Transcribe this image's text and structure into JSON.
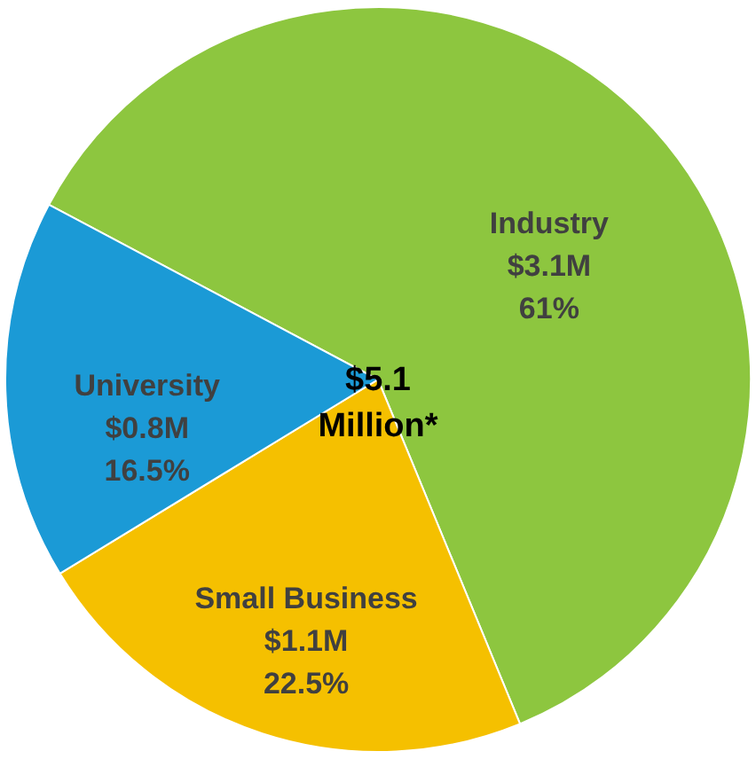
{
  "chart_data": {
    "type": "pie",
    "categories": [
      "Industry",
      "Small Business",
      "University"
    ],
    "values": [
      61,
      22.5,
      16.5
    ],
    "colors": [
      "#8dc63f",
      "#f5c000",
      "#1b9ad6"
    ],
    "value_labels": [
      "$3.1M\n61%",
      "$1.1M\n22.5%",
      "$0.8M\n16.5%"
    ],
    "annotations": [
      "$5.1\nMillion*"
    ],
    "legend": false
  }
}
